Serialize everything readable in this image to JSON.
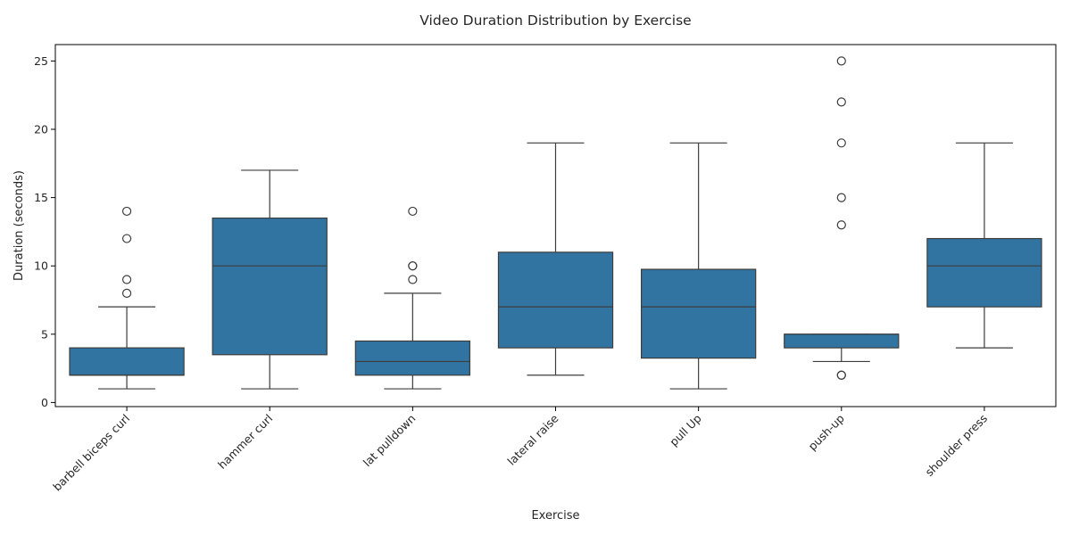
{
  "chart_data": {
    "type": "box",
    "title": "Video Duration Distribution by Exercise",
    "xlabel": "Exercise",
    "ylabel": "Duration (seconds)",
    "ylim": [
      -0.3,
      26.2
    ],
    "yticks": [
      0,
      5,
      10,
      15,
      20,
      25
    ],
    "grid": false,
    "box_color": "#3274a1",
    "line_color": "#3d3d3d",
    "categories": [
      "barbell biceps curl",
      "hammer curl",
      "lat pulldown",
      "lateral raise",
      "pull Up",
      "push-up",
      "shoulder press"
    ],
    "boxes": [
      {
        "whisker_low": 1,
        "q1": 2,
        "median": 2,
        "q3": 4,
        "whisker_high": 7,
        "outliers": [
          8,
          9,
          12,
          14
        ]
      },
      {
        "whisker_low": 1,
        "q1": 3.5,
        "median": 10,
        "q3": 13.5,
        "whisker_high": 17,
        "outliers": []
      },
      {
        "whisker_low": 1,
        "q1": 2,
        "median": 3,
        "q3": 4.5,
        "whisker_high": 8,
        "outliers": [
          9,
          10,
          10,
          14
        ]
      },
      {
        "whisker_low": 2,
        "q1": 4,
        "median": 7,
        "q3": 11,
        "whisker_high": 19,
        "outliers": []
      },
      {
        "whisker_low": 1,
        "q1": 3.25,
        "median": 7,
        "q3": 9.75,
        "whisker_high": 19,
        "outliers": []
      },
      {
        "whisker_low": 3,
        "q1": 4,
        "median": 5,
        "q3": 5,
        "whisker_high": 5,
        "outliers": [
          2,
          2,
          13,
          15,
          19,
          22,
          25
        ]
      },
      {
        "whisker_low": 4,
        "q1": 7,
        "median": 10,
        "q3": 12,
        "whisker_high": 19,
        "outliers": []
      }
    ]
  }
}
